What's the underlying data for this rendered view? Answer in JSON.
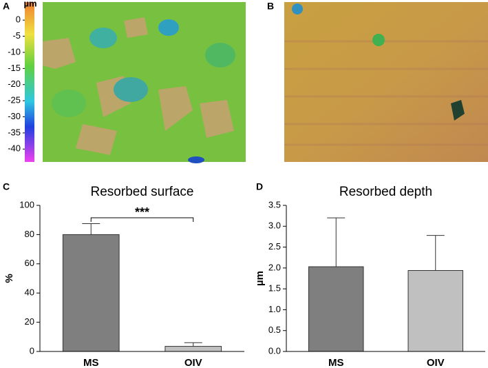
{
  "panel_labels": [
    "A",
    "B",
    "C",
    "D"
  ],
  "colorbar": {
    "label": "µm",
    "clim": [
      5.6,
      -44
    ],
    "ticks": [
      0,
      -5,
      -10,
      -15,
      -20,
      -25,
      -30,
      -35,
      -40
    ]
  },
  "chart_data": [
    {
      "type": "bar",
      "title": "Resorbed surface",
      "ylabel": "%",
      "categories": [
        "MS",
        "OIV"
      ],
      "values": [
        80,
        3.5
      ],
      "errors": [
        7.5,
        2.5
      ],
      "colors": [
        "#7f7f7f",
        "#c0c0c0"
      ],
      "ylim": [
        0,
        100
      ],
      "yticks": [
        0,
        20,
        40,
        60,
        80,
        100
      ],
      "annotation": "***"
    },
    {
      "type": "bar",
      "title": "Resorbed depth",
      "ylabel": "µm",
      "categories": [
        "MS",
        "OIV"
      ],
      "values": [
        2.03,
        1.94
      ],
      "errors": [
        1.17,
        0.84
      ],
      "colors": [
        "#7f7f7f",
        "#c0c0c0"
      ],
      "ylim": [
        0,
        3.5
      ],
      "yticks": [
        {
          "value": 0,
          "label": "0.0"
        },
        {
          "value": 0.5,
          "label": "0.5"
        },
        {
          "value": 1,
          "label": "1.0"
        },
        {
          "value": 1.5,
          "label": "1.5"
        },
        {
          "value": 2,
          "label": "2.0"
        },
        {
          "value": 2.5,
          "label": "2.5"
        },
        {
          "value": 3,
          "label": "3.0"
        },
        {
          "value": 3.5,
          "label": "3.5"
        }
      ]
    }
  ]
}
